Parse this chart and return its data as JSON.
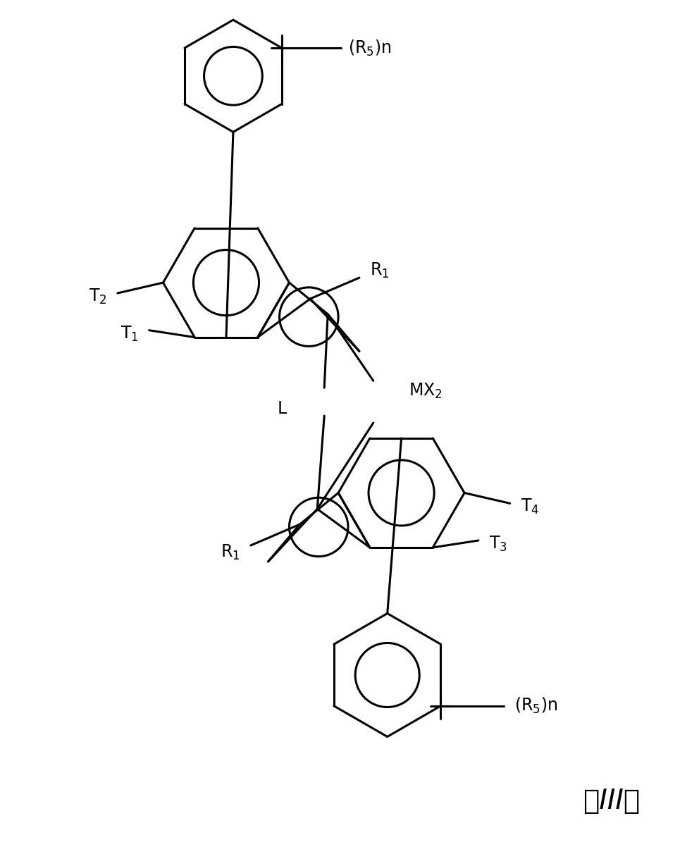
{
  "background_color": "#ffffff",
  "line_color": "#000000",
  "line_width": 2.2,
  "fig_width": 9.92,
  "fig_height": 12.02
}
